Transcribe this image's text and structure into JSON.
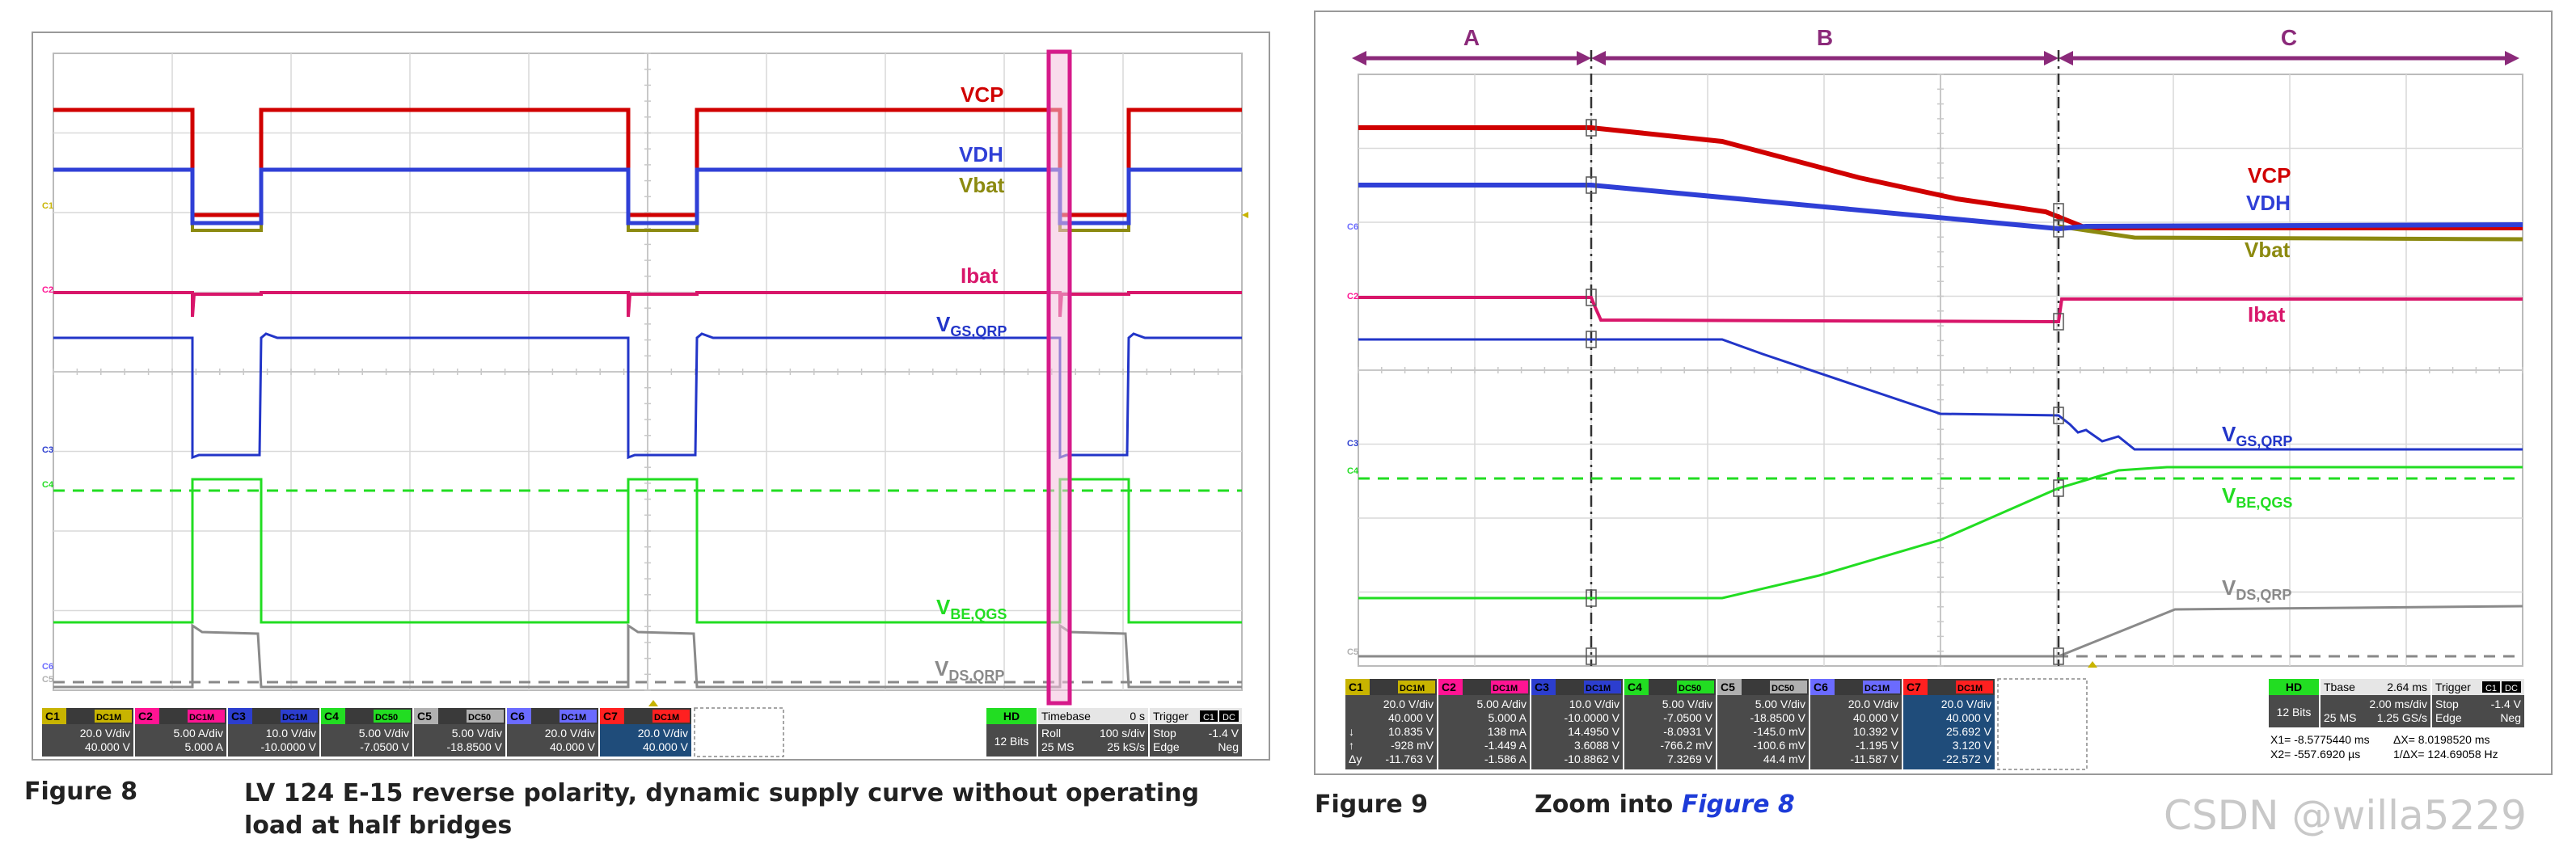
{
  "captions": {
    "fig8_label": "Figure 8",
    "fig8_text": "LV 124 E-15 reverse polarity, dynamic supply curve without operating load at half bridges",
    "fig9_label": "Figure 9",
    "fig9_text": "Zoom into",
    "fig9_ref": "Figure 8"
  },
  "watermark": "CSDN @willa5229",
  "colors": {
    "vcp": "#d00000",
    "vdh": "#2f3fd6",
    "vbat": "#8c8a10",
    "ibat": "#d8166a",
    "vgs": "#2235c8",
    "vbe": "#22dd22",
    "vds": "#8a8a8a",
    "highlight": "#d61a8a",
    "arrows": "#8b2a7a"
  },
  "chart_data": [
    {
      "type": "line",
      "title": "Figure 8",
      "series_labels": [
        {
          "key": "vcp",
          "text": "VCP"
        },
        {
          "key": "vdh",
          "text": "VDH"
        },
        {
          "key": "vbat",
          "text": "Vbat"
        },
        {
          "key": "ibat",
          "text": "Ibat"
        },
        {
          "key": "vgs",
          "text": "V",
          "sub": "GS,QRP"
        },
        {
          "key": "vbe",
          "text": "V",
          "sub": "BE,QGS"
        },
        {
          "key": "vds",
          "text": "V",
          "sub": "DS,QRP"
        }
      ],
      "channel_markers": [
        "C1",
        "C2",
        "C3",
        "C4",
        "C6",
        "C5"
      ],
      "channels": [
        {
          "id": "C1",
          "coupling": "DC1M",
          "scale": "20.0 V/div",
          "offset": "40.000 V",
          "color": "#c8b400"
        },
        {
          "id": "C2",
          "coupling": "DC1M",
          "scale": "5.00 A/div",
          "offset": "5.000 A",
          "color": "#ff1493"
        },
        {
          "id": "C3",
          "coupling": "DC1M",
          "scale": "10.0 V/div",
          "offset": "-10.0000 V",
          "color": "#2c3ecf"
        },
        {
          "id": "C4",
          "coupling": "DC50",
          "scale": "5.00 V/div",
          "offset": "-7.0500 V",
          "color": "#22dd22"
        },
        {
          "id": "C5",
          "coupling": "DC50",
          "scale": "5.00 V/div",
          "offset": "-18.8500 V",
          "color": "#b0b0b0"
        },
        {
          "id": "C6",
          "coupling": "DC1M",
          "scale": "20.0 V/div",
          "offset": "40.000 V",
          "color": "#6b6bff"
        },
        {
          "id": "C7",
          "coupling": "DC1M",
          "scale": "20.0 V/div",
          "offset": "40.000 V",
          "color": "#ff2020"
        }
      ],
      "hd": {
        "label": "HD",
        "bits": "12 Bits"
      },
      "timebase": {
        "label": "Timebase",
        "delay": "0 s",
        "mode": "Roll",
        "tdiv": "100 s/div",
        "samples": "25 MS",
        "rate": "25 kS/s"
      },
      "trigger": {
        "label": "Trigger",
        "src": "C1",
        "coupling": "DC",
        "state": "Stop",
        "level": "-1.4 V",
        "type": "Edge",
        "slope": "Neg"
      }
    },
    {
      "type": "line",
      "title": "Figure 9",
      "regions": [
        "A",
        "B",
        "C"
      ],
      "series_labels": [
        {
          "key": "vcp",
          "text": "VCP"
        },
        {
          "key": "vdh",
          "text": "VDH"
        },
        {
          "key": "vbat",
          "text": "Vbat"
        },
        {
          "key": "ibat",
          "text": "Ibat"
        },
        {
          "key": "vgs",
          "text": "V",
          "sub": "GS,QRP"
        },
        {
          "key": "vbe",
          "text": "V",
          "sub": "BE,QGS"
        },
        {
          "key": "vds",
          "text": "V",
          "sub": "DS,QRP"
        }
      ],
      "channel_markers": [
        "C6",
        "C2",
        "C3",
        "C4",
        "C5"
      ],
      "channels": [
        {
          "id": "C1",
          "coupling": "DC1M",
          "scale": "20.0 V/div",
          "offset": "40.000 V",
          "x1": "10.835 V",
          "x2": "-928 mV",
          "dy": "-11.763 V",
          "color": "#c8b400"
        },
        {
          "id": "C2",
          "coupling": "DC1M",
          "scale": "5.00 A/div",
          "offset": "5.000 A",
          "x1": "138 mA",
          "x2": "-1.449 A",
          "dy": "-1.586 A",
          "color": "#ff1493"
        },
        {
          "id": "C3",
          "coupling": "DC1M",
          "scale": "10.0 V/div",
          "offset": "-10.0000 V",
          "x1": "14.4950 V",
          "x2": "3.6088 V",
          "dy": "-10.8862 V",
          "color": "#2c3ecf"
        },
        {
          "id": "C4",
          "coupling": "DC50",
          "scale": "5.00 V/div",
          "offset": "-7.0500 V",
          "x1": "-8.0931 V",
          "x2": "-766.2 mV",
          "dy": "7.3269 V",
          "color": "#22dd22"
        },
        {
          "id": "C5",
          "coupling": "DC50",
          "scale": "5.00 V/div",
          "offset": "-18.8500 V",
          "x1": "-145.0 mV",
          "x2": "-100.6 mV",
          "dy": "44.4 mV",
          "color": "#b0b0b0"
        },
        {
          "id": "C6",
          "coupling": "DC1M",
          "scale": "20.0 V/div",
          "offset": "40.000 V",
          "x1": "10.392 V",
          "x2": "-1.195 V",
          "dy": "-11.587 V",
          "color": "#6b6bff"
        },
        {
          "id": "C7",
          "coupling": "DC1M",
          "scale": "20.0 V/div",
          "offset": "40.000 V",
          "x1": "25.692 V",
          "x2": "3.120 V",
          "dy": "-22.572 V",
          "color": "#ff2020"
        }
      ],
      "hd": {
        "label": "HD",
        "bits": "12 Bits"
      },
      "timebase": {
        "label": "Tbase",
        "delay": "2.64 ms",
        "tdiv": "2.00 ms/div",
        "samples": "25 MS",
        "rate": "1.25 GS/s"
      },
      "trigger": {
        "label": "Trigger",
        "src": "C1",
        "coupling": "DC",
        "state": "Stop",
        "level": "-1.4 V",
        "type": "Edge",
        "slope": "Neg"
      },
      "cursors": {
        "x1": "X1= -8.5775440 ms",
        "dx": "ΔX= 8.0198520 ms",
        "x2": "X2= -557.6920 µs",
        "inv": "1/ΔX= 124.69058 Hz"
      }
    }
  ]
}
